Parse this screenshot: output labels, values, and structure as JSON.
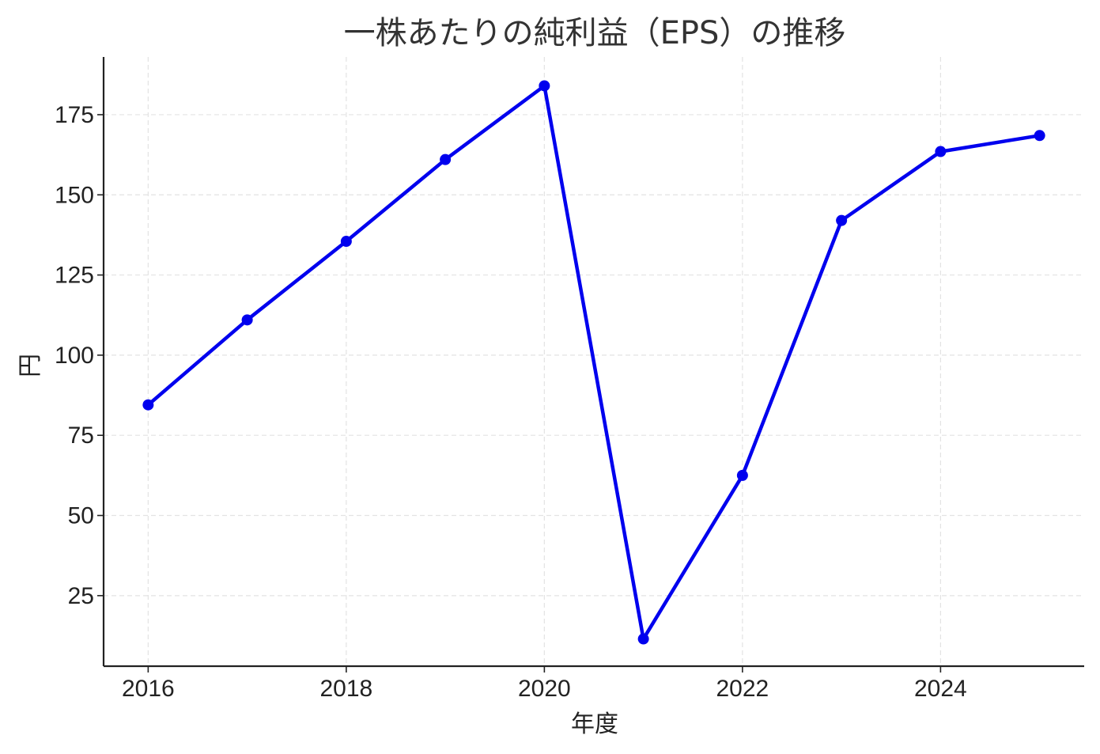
{
  "chart_data": {
    "type": "line",
    "title": "一株あたりの純利益（EPS）の推移",
    "xlabel": "年度",
    "ylabel": "円",
    "x": [
      2016,
      2017,
      2018,
      2019,
      2020,
      2021,
      2022,
      2023,
      2024,
      2025
    ],
    "series": [
      {
        "values": [
          84.5,
          111,
          135.5,
          161,
          184,
          11.5,
          62.5,
          142,
          163.5,
          168.5
        ]
      }
    ],
    "xticks": [
      2016,
      2018,
      2020,
      2022,
      2024
    ],
    "yticks": [
      25,
      50,
      75,
      100,
      125,
      150,
      175
    ],
    "xlim": [
      2015.55,
      2025.45
    ],
    "ylim": [
      3,
      193
    ],
    "grid": true,
    "legend": "none",
    "colors": {
      "line": "#0000ee",
      "grid": "#e3e3e3",
      "axis": "#222222"
    }
  }
}
